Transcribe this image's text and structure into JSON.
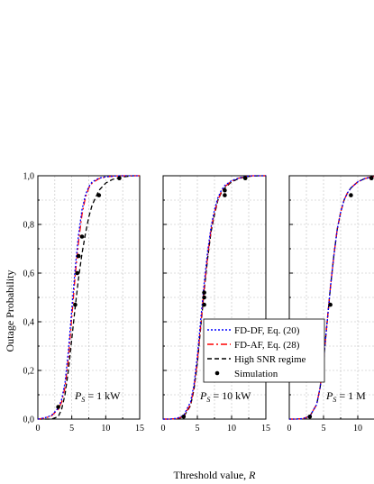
{
  "chart_data": [
    {
      "type": "line",
      "annotation": "P_S = 1 kW",
      "annotation_main": "P",
      "annotation_sub": "S",
      "annotation_rest": " = 1 kW",
      "xlim": [
        0,
        15
      ],
      "ylim": [
        0,
        1
      ],
      "xticks": [
        "0",
        "5",
        "10",
        "15"
      ],
      "yticks": [
        "0,0",
        "0,2",
        "0,4",
        "0,6",
        "0,8",
        "1,0"
      ],
      "grid": true,
      "series": [
        {
          "name": "FD-DF, Eq. (20)",
          "style": "dotted",
          "color": "#0000ff",
          "x": [
            0,
            1,
            2,
            3,
            3.5,
            4,
            4.5,
            5,
            5.5,
            6,
            6.5,
            7,
            7.5,
            8,
            9,
            10,
            11,
            12,
            13,
            14,
            15
          ],
          "y": [
            0,
            0.005,
            0.015,
            0.045,
            0.08,
            0.15,
            0.28,
            0.45,
            0.62,
            0.76,
            0.86,
            0.92,
            0.955,
            0.975,
            0.99,
            0.996,
            0.998,
            1,
            1,
            1,
            1
          ]
        },
        {
          "name": "FD-AF, Eq. (28)",
          "style": "dashdot",
          "color": "#ff0000",
          "x": [
            0,
            1,
            2,
            3,
            3.5,
            4,
            4.5,
            5,
            5.5,
            6,
            6.5,
            7,
            7.5,
            8,
            9,
            10,
            11,
            12,
            13,
            14,
            15
          ],
          "y": [
            0,
            0.004,
            0.013,
            0.04,
            0.07,
            0.13,
            0.25,
            0.42,
            0.59,
            0.73,
            0.84,
            0.91,
            0.95,
            0.97,
            0.988,
            0.995,
            0.998,
            1,
            1,
            1,
            1
          ]
        },
        {
          "name": "High SNR regime",
          "style": "dashed",
          "color": "#000000",
          "x": [
            0,
            1,
            2,
            3,
            3.5,
            4,
            4.5,
            5,
            5.5,
            6,
            6.5,
            7,
            7.5,
            8,
            9,
            10,
            11,
            12,
            13,
            14,
            15
          ],
          "y": [
            0,
            0,
            0,
            0.01,
            0.04,
            0.1,
            0.2,
            0.33,
            0.46,
            0.58,
            0.68,
            0.76,
            0.83,
            0.88,
            0.94,
            0.97,
            0.985,
            0.992,
            0.997,
            1,
            1
          ]
        },
        {
          "name": "Simulation",
          "style": "markers",
          "color": "#000000",
          "x": [
            3,
            5.5,
            5.8,
            6,
            6.5,
            9,
            12
          ],
          "y": [
            0.05,
            0.47,
            0.6,
            0.67,
            0.75,
            0.92,
            0.99
          ]
        }
      ]
    },
    {
      "type": "line",
      "annotation": "P_S = 10 kW",
      "annotation_main": "P",
      "annotation_sub": "S",
      "annotation_rest": " = 10 kW",
      "xlim": [
        0,
        15
      ],
      "ylim": [
        0,
        1
      ],
      "xticks": [
        "0",
        "5",
        "10",
        "15"
      ],
      "grid": true,
      "series": [
        {
          "name": "FD-DF, Eq. (20)",
          "style": "dotted",
          "color": "#0000ff",
          "x": [
            0,
            1,
            2,
            3,
            4,
            4.5,
            5,
            5.5,
            6,
            6.5,
            7,
            7.5,
            8,
            8.5,
            9,
            10,
            11,
            12,
            13,
            14,
            15
          ],
          "y": [
            0,
            0,
            0.003,
            0.015,
            0.07,
            0.14,
            0.26,
            0.41,
            0.56,
            0.69,
            0.79,
            0.86,
            0.91,
            0.94,
            0.96,
            0.98,
            0.99,
            0.997,
            1,
            1,
            1
          ]
        },
        {
          "name": "FD-AF, Eq. (28)",
          "style": "dashdot",
          "color": "#ff0000",
          "x": [
            0,
            1,
            2,
            3,
            4,
            4.5,
            5,
            5.5,
            6,
            6.5,
            7,
            7.5,
            8,
            8.5,
            9,
            10,
            11,
            12,
            13,
            14,
            15
          ],
          "y": [
            0,
            0,
            0.002,
            0.012,
            0.06,
            0.13,
            0.24,
            0.39,
            0.54,
            0.67,
            0.78,
            0.85,
            0.9,
            0.935,
            0.955,
            0.978,
            0.99,
            0.996,
            1,
            1,
            1
          ]
        },
        {
          "name": "High SNR regime",
          "style": "dashed",
          "color": "#000000",
          "x": [
            0,
            1,
            2,
            3,
            4,
            4.5,
            5,
            5.5,
            6,
            6.5,
            7,
            7.5,
            8,
            8.5,
            9,
            10,
            11,
            12,
            13,
            14,
            15
          ],
          "y": [
            0,
            0,
            0.002,
            0.01,
            0.055,
            0.12,
            0.23,
            0.38,
            0.53,
            0.66,
            0.77,
            0.84,
            0.9,
            0.93,
            0.95,
            0.975,
            0.988,
            0.995,
            0.999,
            1,
            1
          ]
        },
        {
          "name": "Simulation",
          "style": "markers",
          "color": "#000000",
          "x": [
            3,
            6,
            6,
            6,
            9,
            9,
            12
          ],
          "y": [
            0.01,
            0.47,
            0.5,
            0.52,
            0.92,
            0.94,
            0.99
          ]
        }
      ]
    },
    {
      "type": "line",
      "annotation": "P_S = 1 M",
      "annotation_main": "P",
      "annotation_sub": "S",
      "annotation_rest": " = 1 M",
      "xlim": [
        0,
        15
      ],
      "ylim": [
        0,
        1
      ],
      "xticks": [
        "0",
        "5",
        "10"
      ],
      "grid": true,
      "series": [
        {
          "name": "FD-DF, Eq. (20)",
          "style": "dotted",
          "color": "#0000ff",
          "x": [
            0,
            1,
            2,
            3,
            4,
            4.5,
            5,
            5.5,
            6,
            6.5,
            7,
            7.5,
            8,
            8.5,
            9,
            10,
            11,
            12,
            13,
            14,
            15
          ],
          "y": [
            0,
            0,
            0.002,
            0.012,
            0.06,
            0.13,
            0.24,
            0.39,
            0.54,
            0.67,
            0.78,
            0.85,
            0.9,
            0.93,
            0.95,
            0.975,
            0.988,
            0.995,
            0.999,
            1,
            1
          ]
        },
        {
          "name": "FD-AF, Eq. (28)",
          "style": "dashdot",
          "color": "#ff0000",
          "x": [
            0,
            1,
            2,
            3,
            4,
            4.5,
            5,
            5.5,
            6,
            6.5,
            7,
            7.5,
            8,
            8.5,
            9,
            10,
            11,
            12,
            13,
            14,
            15
          ],
          "y": [
            0,
            0,
            0.002,
            0.012,
            0.06,
            0.13,
            0.24,
            0.39,
            0.54,
            0.67,
            0.78,
            0.85,
            0.9,
            0.93,
            0.95,
            0.975,
            0.988,
            0.995,
            0.999,
            1,
            1
          ]
        },
        {
          "name": "High SNR regime",
          "style": "dashed",
          "color": "#000000",
          "x": [
            0,
            1,
            2,
            3,
            4,
            4.5,
            5,
            5.5,
            6,
            6.5,
            7,
            7.5,
            8,
            8.5,
            9,
            10,
            11,
            12,
            13,
            14,
            15
          ],
          "y": [
            0,
            0,
            0.002,
            0.012,
            0.06,
            0.13,
            0.24,
            0.39,
            0.54,
            0.67,
            0.78,
            0.85,
            0.9,
            0.93,
            0.95,
            0.975,
            0.988,
            0.995,
            0.999,
            1,
            1
          ]
        },
        {
          "name": "Simulation",
          "style": "markers",
          "color": "#000000",
          "x": [
            3,
            6,
            9,
            12
          ],
          "y": [
            0.01,
            0.47,
            0.92,
            0.99
          ]
        }
      ]
    }
  ],
  "axes": {
    "xlabel_main": "Threshold value, ",
    "xlabel_var": "R",
    "ylabel": "Outage Probability"
  },
  "legend": {
    "placement": "center of first and second panels",
    "entries": [
      {
        "label": "FD-DF, Eq. (20)",
        "style": "dotted",
        "color": "#0000ff"
      },
      {
        "label": "FD-AF, Eq. (28)",
        "style": "dashdot",
        "color": "#ff0000"
      },
      {
        "label": "High SNR regime",
        "style": "dashed",
        "color": "#000000"
      },
      {
        "label": "Simulation",
        "style": "marker",
        "color": "#000000"
      }
    ]
  }
}
